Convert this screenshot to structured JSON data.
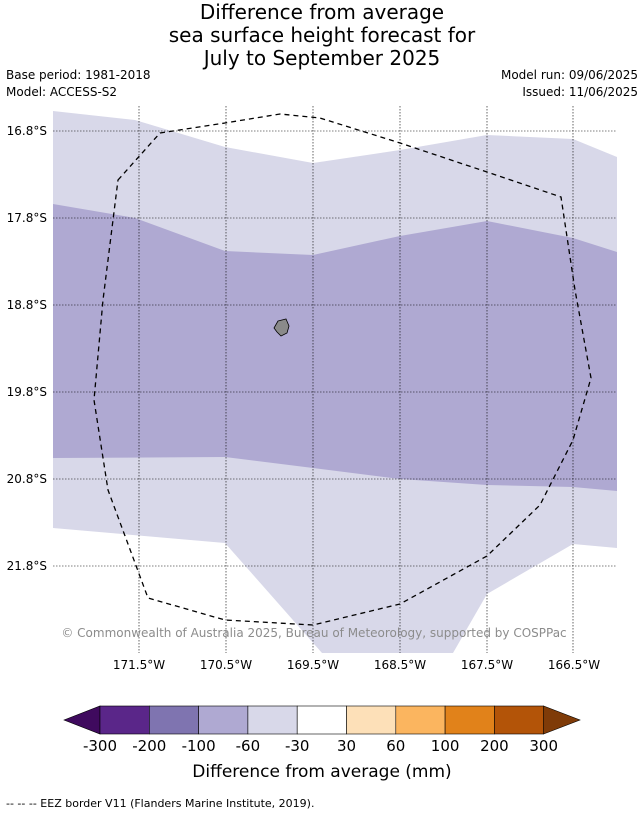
{
  "title": [
    "Difference from average",
    "sea surface height forecast for",
    "July to September 2025"
  ],
  "base_period": "Base period: 1981-2018",
  "model": "Model: ACCESS-S2",
  "model_run": "Model run: 09/06/2025",
  "issued": "Issued: 11/06/2025",
  "lat_labels": [
    "16.8°S",
    "17.8°S",
    "18.8°S",
    "19.8°S",
    "20.8°S",
    "21.8°S"
  ],
  "lon_labels": [
    "171.5°W",
    "170.5°W",
    "169.5°W",
    "168.5°W",
    "167.5°W",
    "166.5°W"
  ],
  "copyright": "© Commonwealth of Australia 2025, Bureau of Meteorology, supported by COSPPac",
  "colorbar": {
    "ticks": [
      "-300",
      "-200",
      "-100",
      "-60",
      "-30",
      "30",
      "60",
      "100",
      "200",
      "300"
    ],
    "colors": [
      "#3f0a5e",
      "#5a2689",
      "#7f74b0",
      "#afa9d2",
      "#d8d8e9",
      "#ffffff",
      "#fde0b8",
      "#fbb55f",
      "#e1821a",
      "#b35408",
      "#7f3b08"
    ],
    "title": "Difference from average (mm)"
  },
  "eez_note": "-- -- -- EEZ border V11 (Flanders Marine Institute, 2019)."
}
